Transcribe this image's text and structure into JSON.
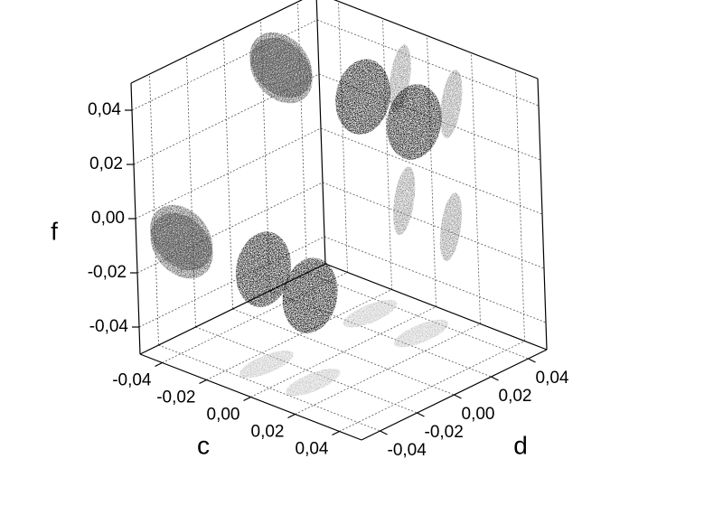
{
  "chart_data": {
    "type": "scatter3d",
    "xlabel": "c",
    "ylabel": "d",
    "zlabel": "f",
    "xlim": [
      -0.05,
      0.05
    ],
    "ylim": [
      -0.05,
      0.05
    ],
    "zlim": [
      -0.05,
      0.05
    ],
    "xticks": [
      {
        "value": -0.04,
        "label": "-0,04"
      },
      {
        "value": -0.02,
        "label": "-0,02"
      },
      {
        "value": 0,
        "label": "0,00"
      },
      {
        "value": 0.02,
        "label": "0,02"
      },
      {
        "value": 0.04,
        "label": "0,04"
      }
    ],
    "yticks": [
      {
        "value": -0.04,
        "label": "-0,04"
      },
      {
        "value": -0.02,
        "label": "-0,02"
      },
      {
        "value": 0,
        "label": "0,00"
      },
      {
        "value": 0.02,
        "label": "0,02"
      },
      {
        "value": 0.04,
        "label": "0,04"
      }
    ],
    "zticks": [
      {
        "value": -0.04,
        "label": "-0,04"
      },
      {
        "value": -0.02,
        "label": "-0,02"
      },
      {
        "value": 0,
        "label": "0,00"
      },
      {
        "value": 0.02,
        "label": "0,02"
      },
      {
        "value": 0.04,
        "label": "0,04"
      }
    ],
    "points": {
      "c": [
        -0.013,
        0.01,
        -0.013,
        0.008
      ],
      "d": [
        0.03,
        0.03,
        -0.026,
        -0.026
      ],
      "f": [
        0.03,
        0.028,
        -0.015,
        -0.018
      ]
    },
    "color": "#000000",
    "left_wall_color": "#4a4a4a",
    "right_wall_color": "#8c8c8c",
    "floor_color": "#bdbdbd",
    "grid": true
  }
}
